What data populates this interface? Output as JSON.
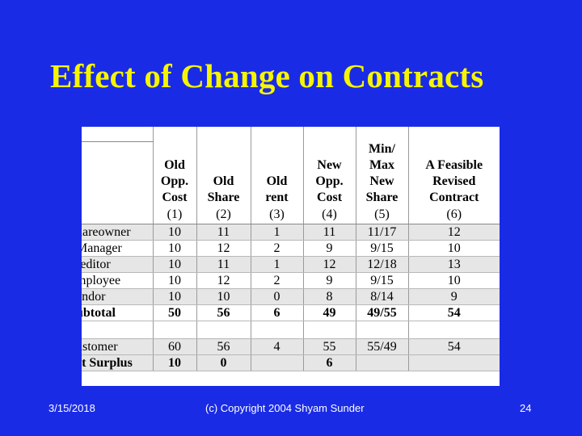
{
  "slide": {
    "title": "Effect of Change on Contracts",
    "footer_date": "3/15/2018",
    "footer_copyright": "(c) Copyright 2004 Shyam Sunder",
    "footer_page": "24"
  },
  "table": {
    "headers": [
      "Old Opp. Cost",
      "Old Share",
      "Old rent",
      "New Opp. Cost",
      "Min/ Max New Share",
      "A Feasible Revised Contract"
    ],
    "header_lines": [
      [
        "Old",
        "Opp.",
        "Cost"
      ],
      [
        "Old",
        "Share"
      ],
      [
        "Old",
        "rent"
      ],
      [
        "New",
        "Opp.",
        "Cost"
      ],
      [
        "Min/",
        "Max",
        "New",
        "Share"
      ],
      [
        "A Feasible",
        "Revised",
        "Contract"
      ]
    ],
    "column_numbers": [
      "(1)",
      "(2)",
      "(3)",
      "(4)",
      "(5)",
      "(6)"
    ],
    "rows": [
      {
        "label": "hareowner",
        "values": [
          "10",
          "11",
          "1",
          "11",
          "11/17",
          "12"
        ]
      },
      {
        "label": "Manager",
        "values": [
          "10",
          "12",
          "2",
          "9",
          "9/15",
          "10"
        ]
      },
      {
        "label": "reditor",
        "values": [
          "10",
          "11",
          "1",
          "12",
          "12/18",
          "13"
        ]
      },
      {
        "label": "mployee",
        "values": [
          "10",
          "12",
          "2",
          "9",
          "9/15",
          "10"
        ]
      },
      {
        "label": "endor",
        "values": [
          "10",
          "10",
          "0",
          "8",
          "8/14",
          "9"
        ]
      },
      {
        "label": "ubtotal",
        "values": [
          "50",
          "56",
          "6",
          "49",
          "49/55",
          "54"
        ]
      }
    ],
    "rows2": [
      {
        "label": "ustomer",
        "values": [
          "60",
          "56",
          "4",
          "55",
          "55/49",
          "54"
        ]
      },
      {
        "label": "et Surplus",
        "values": [
          "10",
          "0",
          "",
          "6",
          "",
          ""
        ]
      }
    ]
  }
}
